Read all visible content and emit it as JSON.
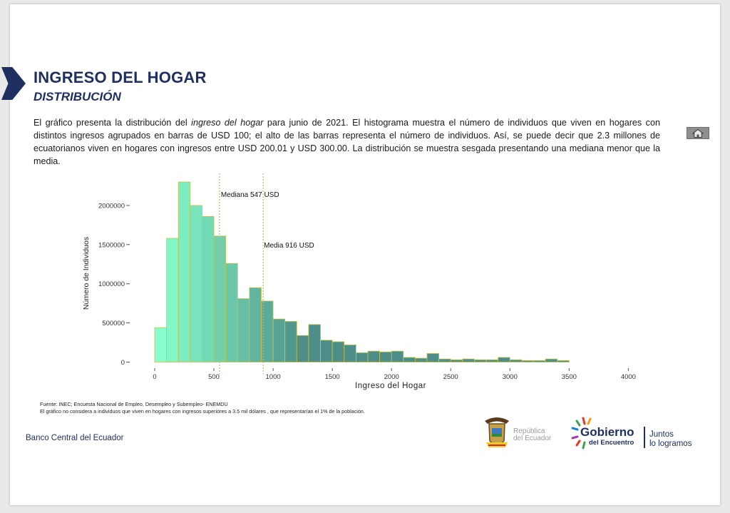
{
  "header": {
    "title": "INGRESO DEL HOGAR",
    "subtitle": "DISTRIBUCIÓN"
  },
  "description": {
    "part1": "El gráfico presenta la distribución del ",
    "emphasis": "ingreso del hogar",
    "part2": " para junio de 2021. El histograma muestra el número de individuos que viven en hogares con distintos ingresos agrupados en barras de USD 100; el alto de las barras representa el número de individuos. Así, se puede decir que 2.3 millones de ecuatorianos viven en hogares con ingresos entre USD 200.01 y USD 300.00. La distribución se muestra sesgada presentando una mediana menor que la media."
  },
  "home_icon": "home-icon",
  "chart_data": {
    "type": "bar",
    "xlabel": "Ingreso del Hogar",
    "ylabel": "Número de Individuos",
    "xlim": [
      0,
      4000
    ],
    "ylim": [
      0,
      2300000
    ],
    "x_ticks": [
      0,
      500,
      1000,
      1500,
      2000,
      2500,
      3000,
      3500,
      4000
    ],
    "y_ticks": [
      0,
      500000,
      1000000,
      1500000,
      2000000
    ],
    "bin_width": 100,
    "bin_starts": [
      0,
      100,
      200,
      300,
      400,
      500,
      600,
      700,
      800,
      900,
      1000,
      1100,
      1200,
      1300,
      1400,
      1500,
      1600,
      1700,
      1800,
      1900,
      2000,
      2100,
      2200,
      2300,
      2400,
      2500,
      2600,
      2700,
      2800,
      2900,
      3000,
      3100,
      3200,
      3300,
      3400
    ],
    "values": [
      440000,
      1580000,
      2300000,
      2000000,
      1860000,
      1610000,
      1260000,
      810000,
      950000,
      780000,
      550000,
      520000,
      340000,
      480000,
      280000,
      260000,
      220000,
      120000,
      140000,
      130000,
      140000,
      60000,
      50000,
      110000,
      40000,
      30000,
      40000,
      30000,
      30000,
      60000,
      30000,
      20000,
      20000,
      40000,
      20000
    ],
    "median": {
      "value": 547,
      "label": "Mediana 547 USD"
    },
    "mean": {
      "value": 916,
      "label": "Media 916 USD"
    },
    "colors": {
      "bar_low": "#88ffcc",
      "bar_high": "#4d8f88",
      "bar_stroke": "#c9c24a",
      "ref_line": "#d7b25a"
    },
    "grid": false
  },
  "footnotes": {
    "source": "Fuente: INEC; Encuesta Nacional de Empleo, Desempleo y Subempleo- ENEMDU",
    "note": "El gráfico no considera  a individuos que viven en hogares con ingresos superiores a 3.5 mil dólares , que representarían el 1% de la población."
  },
  "footer": {
    "bank": "Banco Central del Ecuador",
    "republica_line1": "República",
    "republica_line2": "del Ecuador",
    "gobierno": "Gobierno",
    "del_encuentro": "del Encuentro",
    "juntos_line1": "Juntos",
    "juntos_line2": "lo logramos"
  },
  "colors": {
    "brand_navy": "#1f3060"
  }
}
